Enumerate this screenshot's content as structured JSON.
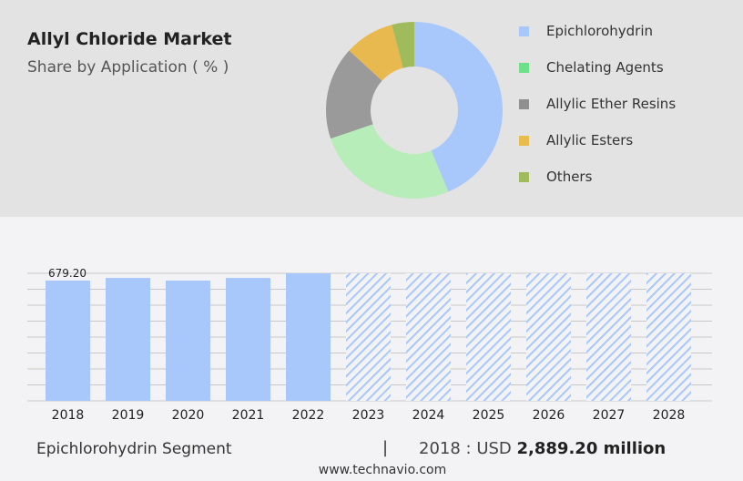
{
  "header": {
    "title": "Allyl Chloride Market",
    "subtitle": "Share by Application ( % )"
  },
  "chart_data": [
    {
      "type": "pie",
      "donut": true,
      "categories": [
        "Epichlorohydrin",
        "Chelating Agents",
        "Allylic Ether Resins",
        "Allylic Esters",
        "Others"
      ],
      "values": [
        43.7,
        26.1,
        17.0,
        9.1,
        4.1
      ],
      "colors": [
        "#a8c8fc",
        "#b7edb8",
        "#9a9a9a",
        "#e8b94e",
        "#9fbb5c"
      ],
      "legend_colors": [
        "#a8c8fc",
        "#6ee08a",
        "#8f8f8f",
        "#e8bd4e",
        "#9fbb5c"
      ],
      "legend": "right"
    },
    {
      "type": "bar",
      "categories": [
        "2018",
        "2019",
        "2020",
        "2021",
        "2022",
        "2023",
        "2024",
        "2025",
        "2026",
        "2027",
        "2028"
      ],
      "values": [
        679.2,
        694,
        679,
        694,
        720,
        null,
        null,
        null,
        null,
        null,
        null
      ],
      "forecast": [
        false,
        false,
        false,
        false,
        false,
        true,
        true,
        true,
        true,
        true,
        true
      ],
      "data_labels": {
        "2018": "679.20"
      },
      "color": "#a8c8fc",
      "grid": true,
      "ylim": [
        0,
        720
      ]
    }
  ],
  "footer": {
    "segment": "Epichlorohydrin Segment",
    "separator": "|",
    "year_label": "2018 : USD",
    "value": "2,889.20 million",
    "url": "www.technavio.com"
  }
}
